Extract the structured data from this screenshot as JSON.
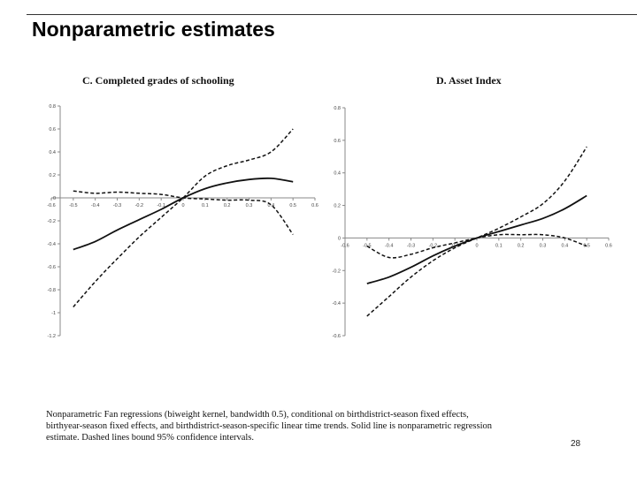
{
  "slide": {
    "title": "Nonparametric estimates",
    "note": "Nonparametric Fan regressions (biweight kernel, bandwidth   0.5), conditional on birthdistrict-season fixed effects, birthyear-season fixed effects, and birthdistrict-season-specific linear time trends. Solid line is nonparametric regression estimate. Dashed lines bound 95% confidence intervals.",
    "page_number": "28"
  },
  "chart_data": [
    {
      "type": "line",
      "title": "C. Completed grades of schooling",
      "xlabel": "",
      "ylabel": "",
      "xlim": [
        -0.6,
        0.6
      ],
      "ylim": [
        -1.2,
        0.8
      ],
      "x_ticks": [
        -0.6,
        -0.5,
        -0.4,
        -0.3,
        -0.2,
        -0.1,
        0,
        0.1,
        0.2,
        0.3,
        0.4,
        0.5,
        0.6
      ],
      "x_tick_labels": [
        "-0.6",
        "-0.5",
        "-0.4",
        "-0.3",
        "-0.2",
        "-0.1",
        "0",
        "0.1",
        "0.2",
        "0.3",
        "0.4",
        "0.5",
        "0.6"
      ],
      "y_ticks": [
        0.8,
        0.6,
        0.4,
        0.2,
        0,
        -0.2,
        -0.4,
        -0.6,
        -0.8,
        -1,
        -1.2
      ],
      "y_tick_labels": [
        "0.8",
        "0.6",
        "0.4",
        "0.2",
        "0",
        "-0.2",
        "-0.4",
        "-0.6",
        "-0.8",
        "-1",
        "-1.2"
      ],
      "grid": false,
      "series": [
        {
          "style": "solid",
          "x": [
            -0.5,
            -0.4,
            -0.3,
            -0.2,
            -0.1,
            0,
            0.1,
            0.2,
            0.3,
            0.4,
            0.5
          ],
          "y": [
            -0.45,
            -0.38,
            -0.28,
            -0.19,
            -0.1,
            0,
            0.08,
            0.13,
            0.16,
            0.17,
            0.14
          ]
        },
        {
          "style": "dashed",
          "x": [
            -0.5,
            -0.4,
            -0.3,
            -0.2,
            -0.1,
            0,
            0.1,
            0.2,
            0.3,
            0.4,
            0.5
          ],
          "y": [
            -0.95,
            -0.73,
            -0.53,
            -0.34,
            -0.17,
            0,
            0.19,
            0.28,
            0.33,
            0.4,
            0.6
          ]
        },
        {
          "style": "dashed",
          "x": [
            -0.5,
            -0.4,
            -0.3,
            -0.2,
            -0.1,
            0,
            0.1,
            0.2,
            0.3,
            0.4,
            0.5
          ],
          "y": [
            0.06,
            0.04,
            0.05,
            0.04,
            0.03,
            0,
            -0.01,
            -0.02,
            -0.02,
            -0.06,
            -0.32
          ]
        }
      ]
    },
    {
      "type": "line",
      "title": "D. Asset Index",
      "xlabel": "",
      "ylabel": "",
      "xlim": [
        -0.6,
        0.6
      ],
      "ylim": [
        -0.6,
        0.8
      ],
      "x_ticks": [
        -0.6,
        -0.5,
        -0.4,
        -0.3,
        -0.2,
        -0.1,
        0,
        0.1,
        0.2,
        0.3,
        0.4,
        0.5,
        0.6
      ],
      "x_tick_labels": [
        "-0.6",
        "-0.5",
        "-0.4",
        "-0.3",
        "-0.2",
        "-0.1",
        "0",
        "0.1",
        "0.2",
        "0.3",
        "0.4",
        "0.5",
        "0.6"
      ],
      "y_ticks": [
        0.8,
        0.6,
        0.4,
        0.2,
        0,
        -0.2,
        -0.4,
        -0.6
      ],
      "y_tick_labels": [
        "0.8",
        "0.6",
        "0.4",
        "0.2",
        "0",
        "-0.2",
        "-0.4",
        "-0.6"
      ],
      "grid": false,
      "series": [
        {
          "style": "solid",
          "x": [
            -0.5,
            -0.4,
            -0.3,
            -0.2,
            -0.1,
            0,
            0.1,
            0.2,
            0.3,
            0.4,
            0.5
          ],
          "y": [
            -0.28,
            -0.24,
            -0.18,
            -0.11,
            -0.05,
            0,
            0.04,
            0.08,
            0.12,
            0.18,
            0.26
          ]
        },
        {
          "style": "dashed",
          "x": [
            -0.5,
            -0.4,
            -0.3,
            -0.2,
            -0.1,
            0,
            0.1,
            0.2,
            0.3,
            0.4,
            0.5
          ],
          "y": [
            -0.48,
            -0.36,
            -0.24,
            -0.14,
            -0.06,
            0,
            0.06,
            0.13,
            0.21,
            0.35,
            0.56
          ]
        },
        {
          "style": "dashed",
          "x": [
            -0.5,
            -0.4,
            -0.3,
            -0.2,
            -0.1,
            0,
            0.1,
            0.2,
            0.3,
            0.4,
            0.5
          ],
          "y": [
            -0.05,
            -0.12,
            -0.1,
            -0.06,
            -0.03,
            0,
            0.02,
            0.02,
            0.02,
            0.0,
            -0.05
          ]
        }
      ]
    }
  ]
}
